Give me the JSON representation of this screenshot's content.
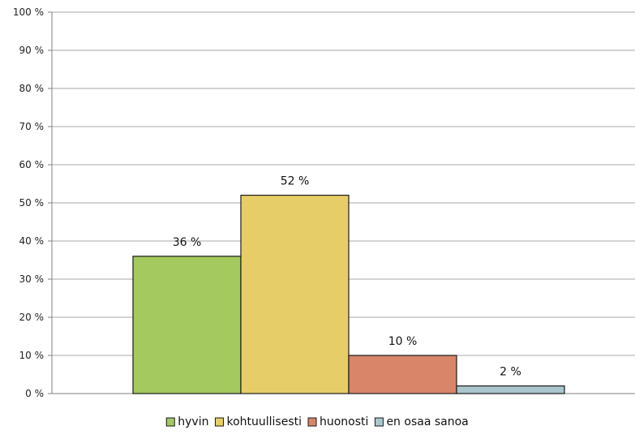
{
  "chart_data": {
    "type": "bar",
    "title": "",
    "xlabel": "",
    "ylabel": "",
    "ylim": [
      0,
      100
    ],
    "y_ticks": [
      0,
      10,
      20,
      30,
      40,
      50,
      60,
      70,
      80,
      90,
      100
    ],
    "y_tick_format": "{v} %",
    "grid": true,
    "legend_position": "bottom",
    "series": [
      {
        "name": "hyvin",
        "value": 36,
        "label": "36 %",
        "color": "#a3c95f"
      },
      {
        "name": "kohtuullisesti",
        "value": 52,
        "label": "52 %",
        "color": "#e7cd67"
      },
      {
        "name": "huonosti",
        "value": 10,
        "label": "10 %",
        "color": "#d8856a"
      },
      {
        "name": "en osaa sanoa",
        "value": 2,
        "label": "2 %",
        "color": "#a9c6cd"
      }
    ]
  }
}
